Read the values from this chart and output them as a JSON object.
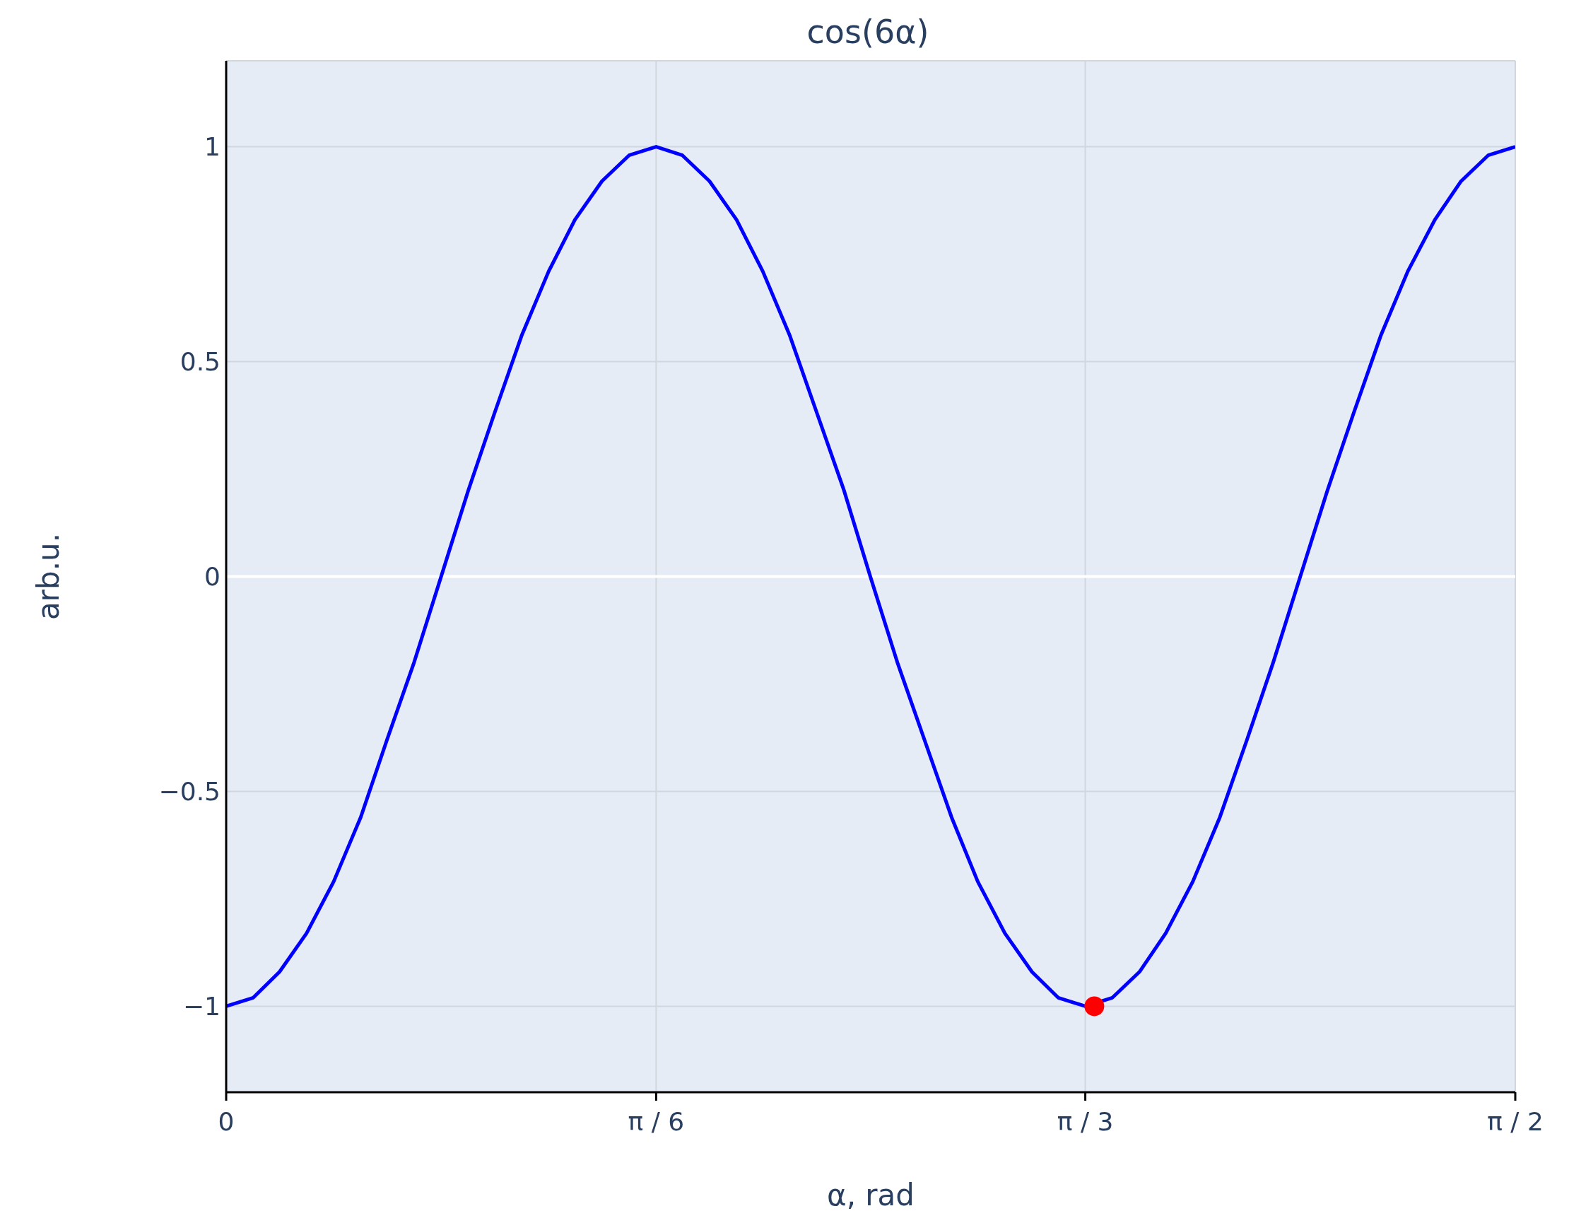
{
  "chart_data": {
    "type": "line",
    "title": "cos(6α)",
    "xlabel": "α, rad",
    "ylabel": "arb.u.",
    "series": [
      {
        "color": "#0000ff",
        "marker": "none",
        "x": [
          0,
          0.033,
          0.065,
          0.098,
          0.131,
          0.164,
          0.196,
          0.229,
          0.262,
          0.295,
          0.327,
          0.36,
          0.393,
          0.425,
          0.458,
          0.491,
          0.524,
          0.556,
          0.589,
          0.622,
          0.654,
          0.687,
          0.72,
          0.753,
          0.785,
          0.818,
          0.851,
          0.884,
          0.916,
          0.949,
          0.982,
          1.014,
          1.047,
          1.08,
          1.113,
          1.145,
          1.178,
          1.211,
          1.244,
          1.276,
          1.309,
          1.342,
          1.374,
          1.407,
          1.44,
          1.473,
          1.505,
          1.538,
          1.571
        ],
        "values": [
          -1,
          -0.98,
          -0.92,
          -0.83,
          -0.71,
          -0.56,
          -0.38,
          -0.2,
          0,
          0.2,
          0.38,
          0.56,
          0.71,
          0.83,
          0.92,
          0.98,
          1,
          0.98,
          0.92,
          0.83,
          0.71,
          0.56,
          0.38,
          0.2,
          0,
          -0.2,
          -0.38,
          -0.56,
          -0.71,
          -0.83,
          -0.92,
          -0.98,
          -1,
          -0.98,
          -0.92,
          -0.83,
          -0.71,
          -0.56,
          -0.38,
          -0.2,
          0,
          0.2,
          0.38,
          0.56,
          0.71,
          0.83,
          0.92,
          0.98,
          1
        ]
      },
      {
        "type": "scatter",
        "color": "#ff0000",
        "marker": "circle",
        "x": [
          1.058
        ],
        "values": [
          -1
        ]
      }
    ],
    "xlim": [
      0,
      1.571
    ],
    "xticks": [
      0,
      {
        "value": 0.524,
        "label": "π / 6"
      },
      {
        "value": 1.047,
        "label": "π / 3"
      },
      {
        "value": 1.571,
        "label": "π / 2"
      }
    ],
    "ylim": [
      -1.2,
      1.2
    ],
    "yticks": [
      -1,
      -0.5,
      0,
      0.5,
      1
    ],
    "ref_lines": [
      {
        "axis": "y",
        "value": 0,
        "color": "#ffffff"
      }
    ],
    "grid": true
  }
}
